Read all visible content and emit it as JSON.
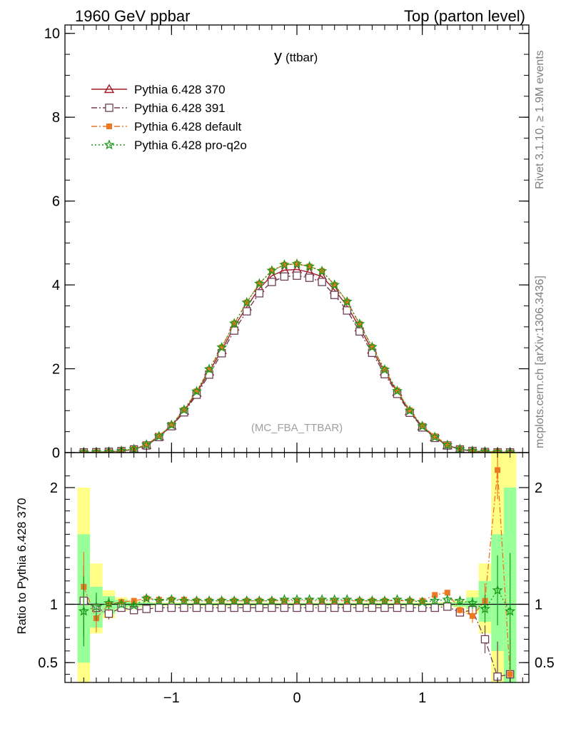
{
  "header": {
    "left": "1960 GeV ppbar",
    "right": "Top (parton level)"
  },
  "side_labels": {
    "rivet": "Rivet 3.1.10, ≥ 1.9M events",
    "mcplots": "mcplots.cern.ch [arXiv:1306.3436]"
  },
  "watermark": "(MC_FBA_TTBAR)",
  "colors": {
    "p370": "#a01a2a",
    "p391": "#6f3f55",
    "default": "#ee7722",
    "proq2o": "#1a9a1a",
    "band_inner": "#99ff99",
    "band_outer": "#ffff88"
  },
  "chart_data": [
    {
      "type": "line",
      "panel": "main",
      "title": "y",
      "title_suffix": "(ttbar)",
      "ylim": [
        0,
        10.2
      ],
      "xlim": [
        -1.85,
        1.85
      ],
      "yticks": [
        0,
        2,
        4,
        6,
        8,
        10
      ],
      "ytick_labels": [
        "0",
        "2",
        "4",
        "6",
        "8",
        "10"
      ],
      "legend_position": "top-left",
      "x": [
        -1.7,
        -1.6,
        -1.5,
        -1.4,
        -1.3,
        -1.2,
        -1.1,
        -1.0,
        -0.9,
        -0.8,
        -0.7,
        -0.6,
        -0.5,
        -0.4,
        -0.3,
        -0.2,
        -0.1,
        0.0,
        0.1,
        0.2,
        0.3,
        0.4,
        0.5,
        0.6,
        0.7,
        0.8,
        0.9,
        1.0,
        1.1,
        1.2,
        1.3,
        1.4,
        1.5,
        1.6,
        1.7
      ],
      "series": [
        {
          "name": "Pythia 6.428 370",
          "color_key": "p370",
          "marker": "triangle",
          "style": "solid",
          "values": [
            0.005,
            0.01,
            0.02,
            0.04,
            0.08,
            0.18,
            0.38,
            0.64,
            0.99,
            1.42,
            1.93,
            2.44,
            3.0,
            3.48,
            3.92,
            4.22,
            4.35,
            4.37,
            4.3,
            4.2,
            3.88,
            3.5,
            2.98,
            2.45,
            1.93,
            1.44,
            0.98,
            0.62,
            0.36,
            0.17,
            0.08,
            0.04,
            0.02,
            0.01,
            0.005
          ]
        },
        {
          "name": "Pythia 6.428 391",
          "color_key": "p391",
          "marker": "square",
          "style": "dashdot",
          "values": [
            0.005,
            0.01,
            0.02,
            0.036,
            0.076,
            0.17,
            0.37,
            0.63,
            0.96,
            1.38,
            1.86,
            2.37,
            2.91,
            3.37,
            3.8,
            4.07,
            4.2,
            4.22,
            4.17,
            4.07,
            3.76,
            3.39,
            2.89,
            2.38,
            1.87,
            1.4,
            0.95,
            0.6,
            0.35,
            0.17,
            0.075,
            0.038,
            0.014,
            0.007,
            0.004
          ]
        },
        {
          "name": "Pythia 6.428 default",
          "color_key": "default",
          "marker": "filled-square",
          "style": "dashdot",
          "values": [
            0.006,
            0.009,
            0.021,
            0.041,
            0.085,
            0.19,
            0.4,
            0.66,
            1.02,
            1.46,
            1.98,
            2.51,
            3.08,
            3.58,
            4.03,
            4.34,
            4.48,
            4.5,
            4.44,
            4.33,
            4.0,
            3.6,
            3.07,
            2.52,
            1.98,
            1.48,
            1.01,
            0.64,
            0.39,
            0.19,
            0.087,
            0.036,
            0.021,
            0.022,
            0.004
          ]
        },
        {
          "name": "Pythia 6.428 pro-q2o",
          "color_key": "proq2o",
          "marker": "star",
          "style": "dotted",
          "values": [
            0.005,
            0.01,
            0.02,
            0.04,
            0.08,
            0.19,
            0.39,
            0.66,
            1.02,
            1.46,
            1.99,
            2.51,
            3.08,
            3.58,
            4.03,
            4.34,
            4.48,
            4.5,
            4.44,
            4.33,
            4.0,
            3.6,
            3.07,
            2.52,
            1.98,
            1.47,
            1.0,
            0.63,
            0.37,
            0.18,
            0.083,
            0.039,
            0.022,
            0.01,
            0.005
          ]
        }
      ]
    },
    {
      "type": "line",
      "panel": "ratio",
      "ylabel": "Ratio to Pythia 6.428 370",
      "ylim": [
        0.33,
        2.3
      ],
      "xlim": [
        -1.85,
        1.85
      ],
      "yticks": [
        0.5,
        1,
        2
      ],
      "ytick_labels": [
        "0.5",
        "1",
        "2"
      ],
      "xticks": [
        -1,
        0,
        1
      ],
      "xtick_labels": [
        "−1",
        "0",
        "1"
      ],
      "x": [
        -1.7,
        -1.6,
        -1.5,
        -1.4,
        -1.3,
        -1.2,
        -1.1,
        -1.0,
        -0.9,
        -0.8,
        -0.7,
        -0.6,
        -0.5,
        -0.4,
        -0.3,
        -0.2,
        -0.1,
        0.0,
        0.1,
        0.2,
        0.3,
        0.4,
        0.5,
        0.6,
        0.7,
        0.8,
        0.9,
        1.0,
        1.1,
        1.2,
        1.3,
        1.4,
        1.5,
        1.6,
        1.7
      ],
      "reference_band": {
        "inner": [
          [
            0.5,
            1.6
          ],
          [
            0.8,
            1.15
          ],
          [
            0.92,
            1.07
          ],
          [
            0.96,
            1.04
          ],
          [
            0.98,
            1.02
          ],
          [
            0.985,
            1.015
          ],
          [
            0.99,
            1.01
          ],
          [
            0.99,
            1.01
          ],
          [
            0.99,
            1.01
          ],
          [
            0.99,
            1.01
          ],
          [
            0.99,
            1.01
          ],
          [
            0.99,
            1.01
          ],
          [
            0.99,
            1.01
          ],
          [
            0.99,
            1.01
          ],
          [
            0.99,
            1.01
          ],
          [
            0.99,
            1.01
          ],
          [
            0.99,
            1.01
          ],
          [
            0.99,
            1.01
          ],
          [
            0.99,
            1.01
          ],
          [
            0.99,
            1.01
          ],
          [
            0.99,
            1.01
          ],
          [
            0.99,
            1.01
          ],
          [
            0.99,
            1.01
          ],
          [
            0.99,
            1.01
          ],
          [
            0.99,
            1.01
          ],
          [
            0.99,
            1.01
          ],
          [
            0.99,
            1.01
          ],
          [
            0.99,
            1.01
          ],
          [
            0.99,
            1.01
          ],
          [
            0.985,
            1.015
          ],
          [
            0.98,
            1.02
          ],
          [
            0.96,
            1.06
          ],
          [
            0.85,
            1.2
          ],
          [
            0.6,
            1.6
          ],
          [
            0.3,
            2.0
          ]
        ],
        "outer": [
          [
            0.3,
            2.0
          ],
          [
            0.75,
            1.35
          ],
          [
            0.88,
            1.12
          ],
          [
            0.94,
            1.06
          ],
          [
            0.97,
            1.03
          ],
          [
            0.98,
            1.02
          ],
          [
            0.985,
            1.015
          ],
          [
            0.985,
            1.015
          ],
          [
            0.985,
            1.015
          ],
          [
            0.985,
            1.015
          ],
          [
            0.985,
            1.015
          ],
          [
            0.985,
            1.015
          ],
          [
            0.985,
            1.015
          ],
          [
            0.985,
            1.015
          ],
          [
            0.985,
            1.015
          ],
          [
            0.985,
            1.015
          ],
          [
            0.985,
            1.015
          ],
          [
            0.985,
            1.015
          ],
          [
            0.985,
            1.015
          ],
          [
            0.985,
            1.015
          ],
          [
            0.985,
            1.015
          ],
          [
            0.985,
            1.015
          ],
          [
            0.985,
            1.015
          ],
          [
            0.985,
            1.015
          ],
          [
            0.985,
            1.015
          ],
          [
            0.985,
            1.015
          ],
          [
            0.985,
            1.015
          ],
          [
            0.985,
            1.015
          ],
          [
            0.985,
            1.015
          ],
          [
            0.98,
            1.02
          ],
          [
            0.97,
            1.03
          ],
          [
            0.92,
            1.12
          ],
          [
            0.75,
            1.35
          ],
          [
            0.3,
            2.3
          ],
          [
            0.3,
            2.3
          ]
        ]
      },
      "series": [
        {
          "name": "Pythia 6.428 391",
          "color_key": "p391",
          "marker": "square",
          "style": "dashdot",
          "values": [
            1.03,
            0.97,
            0.92,
            0.97,
            0.95,
            0.96,
            0.97,
            0.97,
            0.97,
            0.97,
            0.97,
            0.97,
            0.97,
            0.97,
            0.97,
            0.97,
            0.97,
            0.97,
            0.97,
            0.97,
            0.97,
            0.97,
            0.97,
            0.97,
            0.97,
            0.97,
            0.97,
            0.97,
            0.97,
            0.98,
            0.93,
            0.95,
            0.7,
            0.38,
            0.4
          ],
          "errors": [
            0.3,
            0.1,
            0.05,
            0.03,
            0.02,
            0.02,
            0.01,
            0.01,
            0.01,
            0.01,
            0.01,
            0.01,
            0.01,
            0.01,
            0.01,
            0.01,
            0.01,
            0.01,
            0.01,
            0.01,
            0.01,
            0.01,
            0.01,
            0.01,
            0.01,
            0.01,
            0.01,
            0.01,
            0.01,
            0.02,
            0.02,
            0.03,
            0.12,
            0.3,
            0.3
          ]
        },
        {
          "name": "Pythia 6.428 default",
          "color_key": "default",
          "marker": "filled-square",
          "style": "dashdot",
          "values": [
            1.15,
            0.88,
            1.0,
            1.02,
            1.03,
            1.05,
            1.04,
            1.04,
            1.04,
            1.03,
            1.03,
            1.03,
            1.03,
            1.03,
            1.03,
            1.03,
            1.03,
            1.03,
            1.03,
            1.03,
            1.03,
            1.03,
            1.03,
            1.03,
            1.03,
            1.03,
            1.03,
            1.03,
            1.08,
            1.1,
            0.95,
            0.9,
            1.03,
            2.15,
            0.4
          ],
          "errors": [
            0.3,
            0.12,
            0.06,
            0.03,
            0.02,
            0.02,
            0.01,
            0.01,
            0.01,
            0.01,
            0.01,
            0.01,
            0.01,
            0.01,
            0.01,
            0.01,
            0.01,
            0.01,
            0.01,
            0.01,
            0.01,
            0.01,
            0.01,
            0.01,
            0.01,
            0.01,
            0.01,
            0.01,
            0.02,
            0.02,
            0.03,
            0.06,
            0.15,
            0.25,
            0.3
          ]
        },
        {
          "name": "Pythia 6.428 pro-q2o",
          "color_key": "proq2o",
          "marker": "star",
          "style": "dotted",
          "values": [
            0.94,
            0.98,
            1.01,
            1.0,
            0.99,
            1.05,
            1.03,
            1.04,
            1.03,
            1.03,
            1.03,
            1.03,
            1.03,
            1.03,
            1.03,
            1.03,
            1.04,
            1.04,
            1.04,
            1.04,
            1.04,
            1.04,
            1.03,
            1.03,
            1.03,
            1.04,
            1.03,
            1.02,
            1.03,
            1.04,
            1.03,
            1.01,
            0.96,
            1.12,
            0.94
          ],
          "errors": [
            0.3,
            0.12,
            0.05,
            0.03,
            0.02,
            0.02,
            0.01,
            0.01,
            0.01,
            0.01,
            0.01,
            0.01,
            0.01,
            0.01,
            0.01,
            0.01,
            0.01,
            0.01,
            0.01,
            0.01,
            0.01,
            0.01,
            0.01,
            0.01,
            0.01,
            0.01,
            0.01,
            0.01,
            0.02,
            0.02,
            0.03,
            0.05,
            0.12,
            0.3,
            0.5
          ]
        }
      ]
    }
  ]
}
